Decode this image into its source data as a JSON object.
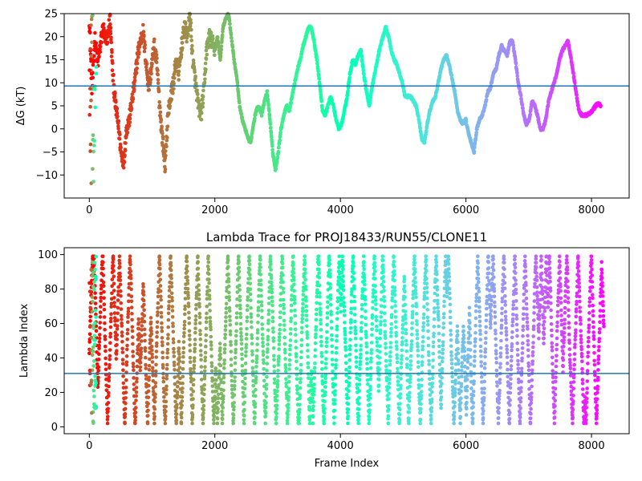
{
  "chart_data": [
    {
      "type": "scatter",
      "title": "",
      "xlabel": "",
      "ylabel": "ΔG (kT)",
      "xlim": [
        -400,
        8600
      ],
      "ylim": [
        -15,
        25
      ],
      "x_ticks": [
        0,
        2000,
        4000,
        6000,
        8000
      ],
      "y_ticks": [
        -10,
        -5,
        0,
        5,
        10,
        15,
        20,
        25
      ],
      "hline": 9.3,
      "hline_color": "#1f77b4",
      "colormap": "rainbow (late frames violet, early frames red)",
      "grid": false,
      "trace": [
        [
          0,
          24
        ],
        [
          40,
          8
        ],
        [
          80,
          20
        ],
        [
          120,
          14
        ],
        [
          160,
          18
        ],
        [
          200,
          22
        ],
        [
          250,
          18
        ],
        [
          300,
          24
        ],
        [
          340,
          12
        ],
        [
          380,
          5
        ],
        [
          420,
          1
        ],
        [
          460,
          -5
        ],
        [
          500,
          -7
        ],
        [
          540,
          0
        ],
        [
          580,
          2
        ],
        [
          620,
          6
        ],
        [
          660,
          10
        ],
        [
          700,
          16
        ],
        [
          740,
          19
        ],
        [
          780,
          21
        ],
        [
          820,
          15
        ],
        [
          860,
          9
        ],
        [
          900,
          13
        ],
        [
          940,
          18
        ],
        [
          980,
          14
        ],
        [
          1020,
          5
        ],
        [
          1060,
          -2
        ],
        [
          1100,
          -8
        ],
        [
          1140,
          3
        ],
        [
          1180,
          7
        ],
        [
          1220,
          10
        ],
        [
          1260,
          15
        ],
        [
          1300,
          12
        ],
        [
          1340,
          18
        ],
        [
          1380,
          22
        ],
        [
          1420,
          20
        ],
        [
          1460,
          25
        ],
        [
          1500,
          15
        ],
        [
          1540,
          10
        ],
        [
          1580,
          5
        ],
        [
          1620,
          3
        ],
        [
          1660,
          8
        ],
        [
          1700,
          17
        ],
        [
          1740,
          20
        ],
        [
          1780,
          19
        ],
        [
          1820,
          17
        ],
        [
          1860,
          20
        ],
        [
          1900,
          15
        ],
        [
          1940,
          22
        ],
        [
          1980,
          24
        ],
        [
          2020,
          25
        ],
        [
          2060,
          20
        ],
        [
          2100,
          15
        ],
        [
          2140,
          11
        ],
        [
          2180,
          5
        ],
        [
          2220,
          2
        ],
        [
          2260,
          0
        ],
        [
          2300,
          -2
        ],
        [
          2340,
          -3
        ],
        [
          2380,
          1
        ],
        [
          2420,
          4
        ],
        [
          2460,
          5
        ],
        [
          2500,
          3
        ],
        [
          2540,
          6
        ],
        [
          2580,
          8
        ],
        [
          2620,
          2
        ],
        [
          2660,
          -5
        ],
        [
          2700,
          -9
        ],
        [
          2740,
          -5
        ],
        [
          2780,
          0
        ],
        [
          2820,
          3
        ],
        [
          2860,
          5
        ],
        [
          2900,
          4
        ],
        [
          2940,
          7
        ],
        [
          2980,
          10
        ],
        [
          3020,
          13
        ],
        [
          3060,
          15
        ],
        [
          3100,
          18
        ],
        [
          3140,
          20
        ],
        [
          3180,
          22
        ],
        [
          3220,
          22
        ],
        [
          3260,
          19
        ],
        [
          3300,
          15
        ],
        [
          3340,
          10
        ],
        [
          3380,
          4
        ],
        [
          3420,
          3
        ],
        [
          3460,
          5
        ],
        [
          3500,
          7
        ],
        [
          3540,
          5
        ],
        [
          3580,
          2
        ],
        [
          3620,
          0
        ],
        [
          3660,
          1
        ],
        [
          3700,
          4
        ],
        [
          3740,
          7
        ],
        [
          3780,
          12
        ],
        [
          3820,
          15
        ],
        [
          3860,
          14
        ],
        [
          3900,
          16
        ],
        [
          3940,
          17
        ],
        [
          3980,
          12
        ],
        [
          4020,
          8
        ],
        [
          4060,
          5
        ],
        [
          4100,
          9
        ],
        [
          4140,
          12
        ],
        [
          4180,
          15
        ],
        [
          4220,
          18
        ],
        [
          4260,
          20
        ],
        [
          4300,
          22
        ],
        [
          4340,
          20
        ],
        [
          4380,
          17
        ],
        [
          4420,
          15
        ],
        [
          4460,
          14
        ],
        [
          4500,
          12
        ],
        [
          4540,
          10
        ],
        [
          4580,
          7
        ],
        [
          4620,
          7
        ],
        [
          4660,
          7
        ],
        [
          4700,
          6
        ],
        [
          4740,
          5
        ],
        [
          4780,
          2
        ],
        [
          4820,
          -2
        ],
        [
          4860,
          -3
        ],
        [
          4900,
          1
        ],
        [
          4940,
          4
        ],
        [
          4980,
          6
        ],
        [
          5020,
          7
        ],
        [
          5060,
          10
        ],
        [
          5100,
          13
        ],
        [
          5140,
          15
        ],
        [
          5180,
          16
        ],
        [
          5220,
          14
        ],
        [
          5260,
          11
        ],
        [
          5300,
          8
        ],
        [
          5340,
          4
        ],
        [
          5380,
          2
        ],
        [
          5420,
          1
        ],
        [
          5460,
          2
        ],
        [
          5500,
          -1
        ],
        [
          5540,
          -3
        ],
        [
          5580,
          -5
        ],
        [
          5620,
          0
        ],
        [
          5660,
          2
        ],
        [
          5700,
          3
        ],
        [
          5740,
          5
        ],
        [
          5780,
          8
        ],
        [
          5820,
          9
        ],
        [
          5860,
          12
        ],
        [
          5900,
          13
        ],
        [
          5940,
          16
        ],
        [
          5980,
          18
        ],
        [
          6020,
          17
        ],
        [
          6060,
          16
        ],
        [
          6100,
          19
        ],
        [
          6140,
          19
        ],
        [
          6180,
          15
        ],
        [
          6220,
          10
        ],
        [
          6260,
          7
        ],
        [
          6300,
          3
        ],
        [
          6340,
          1
        ],
        [
          6380,
          2
        ],
        [
          6420,
          6
        ],
        [
          6460,
          5
        ],
        [
          6500,
          3
        ],
        [
          6540,
          0
        ],
        [
          6580,
          0
        ],
        [
          6620,
          2
        ],
        [
          6660,
          6
        ],
        [
          6700,
          8
        ],
        [
          6740,
          10
        ],
        [
          6780,
          12
        ],
        [
          6820,
          15
        ],
        [
          6860,
          17
        ],
        [
          6900,
          18
        ],
        [
          6940,
          19
        ],
        [
          6980,
          16
        ],
        [
          7020,
          12
        ],
        [
          7060,
          8
        ],
        [
          7100,
          4
        ],
        [
          7140,
          3
        ],
        [
          7180,
          3
        ],
        [
          7220,
          3
        ],
        [
          7260,
          3.5
        ],
        [
          7300,
          4
        ],
        [
          7340,
          5
        ],
        [
          7380,
          5.5
        ],
        [
          7420,
          5
        ]
      ]
    },
    {
      "type": "scatter",
      "title": "Lambda Trace for PROJ18433/RUN55/CLONE11",
      "xlabel": "Frame Index",
      "ylabel": "Lambda Index",
      "xlim": [
        -400,
        8600
      ],
      "ylim": [
        -4,
        104
      ],
      "x_ticks": [
        0,
        2000,
        4000,
        6000,
        8000
      ],
      "y_ticks": [
        0,
        20,
        40,
        60,
        80,
        100
      ],
      "hline": 31,
      "hline_color": "#1f77b4",
      "colormap": "rainbow (late frames violet, early frames red)",
      "grid": false,
      "frame_range": [
        0,
        8200
      ],
      "lambda_range": [
        0,
        99
      ]
    }
  ]
}
